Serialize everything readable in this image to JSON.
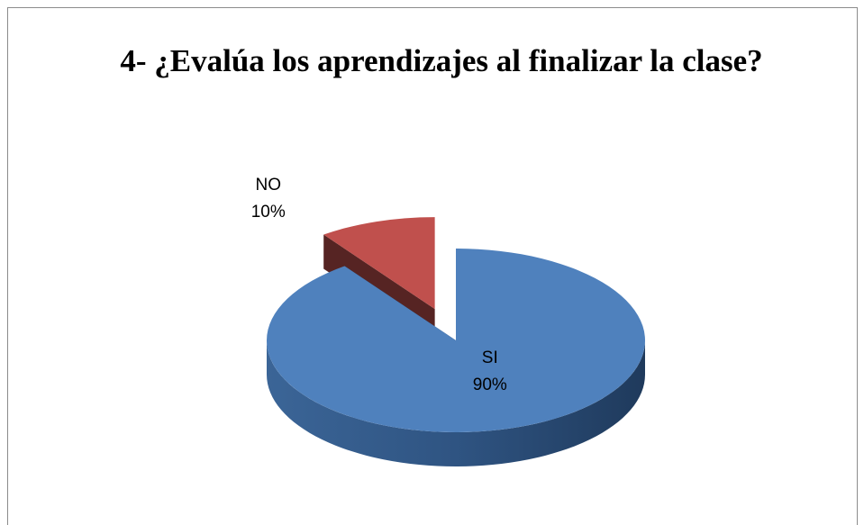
{
  "chart_data": {
    "type": "pie3d",
    "title": "4- ¿Evalúa los aprendizajes al finalizar la clase?",
    "categories": [
      "SI",
      "NO"
    ],
    "values": [
      90,
      10
    ],
    "value_labels": [
      "90%",
      "10%"
    ],
    "colors": [
      "#4f81bd",
      "#c0504d"
    ],
    "exploded": [
      false,
      true
    ]
  }
}
